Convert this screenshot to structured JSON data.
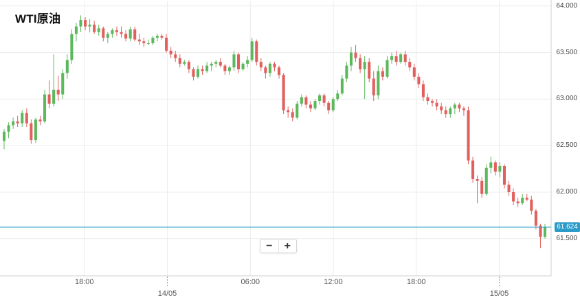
{
  "title": "WTI原油",
  "chart_data": {
    "type": "candlestick",
    "title": "WTI原油",
    "ylim": [
      61.1,
      64.05
    ],
    "y_ticks": [
      "64.000",
      "63.500",
      "63.000",
      "62.500",
      "62.000",
      "61.500"
    ],
    "x_ticks": [
      {
        "label": "18:00",
        "hour": 18
      },
      {
        "label": "14/05",
        "hour": 24
      },
      {
        "label": "06:00",
        "hour": 30
      },
      {
        "label": "12:00",
        "hour": 36
      },
      {
        "label": "18:00",
        "hour": 42
      },
      {
        "label": "15/05",
        "hour": 48
      }
    ],
    "x_range_hours": [
      11.9,
      51.75
    ],
    "day_separators_hours": [
      24,
      48
    ],
    "current_price": "61.624",
    "current_price_value": 61.624,
    "up_color": "#5cb85c",
    "down_color": "#e0605e",
    "price_line_color": "#2b9bc7",
    "candles": [
      [
        62.55,
        62.68,
        62.46,
        62.65
      ],
      [
        62.65,
        62.75,
        62.58,
        62.72
      ],
      [
        62.72,
        62.8,
        62.68,
        62.76
      ],
      [
        62.76,
        62.82,
        62.7,
        62.74
      ],
      [
        62.74,
        62.88,
        62.7,
        62.85
      ],
      [
        62.85,
        62.9,
        62.7,
        62.74
      ],
      [
        62.74,
        62.78,
        62.52,
        62.56
      ],
      [
        62.56,
        62.8,
        62.53,
        62.78
      ],
      [
        62.78,
        62.82,
        62.72,
        62.76
      ],
      [
        62.76,
        63.1,
        62.74,
        63.05
      ],
      [
        63.05,
        63.2,
        62.9,
        62.95
      ],
      [
        62.95,
        63.48,
        62.92,
        63.1
      ],
      [
        63.1,
        63.25,
        62.98,
        63.05
      ],
      [
        63.05,
        63.32,
        63.0,
        63.28
      ],
      [
        63.28,
        63.48,
        63.22,
        63.42
      ],
      [
        63.42,
        63.75,
        63.38,
        63.7
      ],
      [
        63.7,
        63.82,
        63.62,
        63.78
      ],
      [
        63.78,
        63.9,
        63.72,
        63.85
      ],
      [
        63.85,
        63.88,
        63.74,
        63.78
      ],
      [
        63.78,
        63.86,
        63.72,
        63.8
      ],
      [
        63.8,
        63.84,
        63.7,
        63.72
      ],
      [
        63.72,
        63.8,
        63.68,
        63.76
      ],
      [
        63.76,
        63.78,
        63.62,
        63.66
      ],
      [
        63.66,
        63.72,
        63.6,
        63.7
      ],
      [
        63.7,
        63.76,
        63.66,
        63.74
      ],
      [
        63.74,
        63.78,
        63.68,
        63.72
      ],
      [
        63.72,
        63.78,
        63.66,
        63.7
      ],
      [
        63.7,
        63.74,
        63.62,
        63.65
      ],
      [
        63.65,
        63.78,
        63.62,
        63.75
      ],
      [
        63.75,
        63.78,
        63.62,
        63.64
      ],
      [
        63.64,
        63.7,
        63.58,
        63.62
      ],
      [
        63.62,
        63.66,
        63.56,
        63.6
      ],
      [
        63.6,
        63.64,
        63.58,
        63.6
      ],
      [
        63.6,
        63.68,
        63.58,
        63.66
      ],
      [
        63.66,
        63.7,
        63.62,
        63.68
      ],
      [
        63.68,
        63.7,
        63.64,
        63.66
      ],
      [
        63.66,
        63.7,
        63.5,
        63.52
      ],
      [
        63.52,
        63.56,
        63.44,
        63.48
      ],
      [
        63.48,
        63.52,
        63.4,
        63.44
      ],
      [
        63.44,
        63.48,
        63.34,
        63.38
      ],
      [
        63.38,
        63.42,
        63.36,
        63.4
      ],
      [
        63.4,
        63.42,
        63.28,
        63.32
      ],
      [
        63.32,
        63.34,
        63.2,
        63.24
      ],
      [
        63.24,
        63.36,
        63.22,
        63.32
      ],
      [
        63.32,
        63.36,
        63.26,
        63.3
      ],
      [
        63.3,
        63.4,
        63.28,
        63.36
      ],
      [
        63.36,
        63.4,
        63.3,
        63.38
      ],
      [
        63.38,
        63.42,
        63.34,
        63.4
      ],
      [
        63.4,
        63.44,
        63.34,
        63.36
      ],
      [
        63.36,
        63.38,
        63.26,
        63.3
      ],
      [
        63.3,
        63.36,
        63.26,
        63.34
      ],
      [
        63.34,
        63.52,
        63.3,
        63.48
      ],
      [
        63.48,
        63.5,
        63.28,
        63.32
      ],
      [
        63.32,
        63.4,
        63.3,
        63.38
      ],
      [
        63.38,
        63.46,
        63.34,
        63.42
      ],
      [
        63.42,
        63.66,
        63.4,
        63.62
      ],
      [
        63.62,
        63.64,
        63.36,
        63.4
      ],
      [
        63.4,
        63.44,
        63.3,
        63.34
      ],
      [
        63.34,
        63.36,
        63.22,
        63.28
      ],
      [
        63.28,
        63.4,
        63.24,
        63.38
      ],
      [
        63.38,
        63.4,
        63.3,
        63.34
      ],
      [
        63.34,
        63.36,
        63.22,
        63.26
      ],
      [
        63.26,
        63.28,
        62.84,
        62.88
      ],
      [
        62.88,
        62.92,
        62.8,
        62.86
      ],
      [
        62.86,
        62.9,
        62.76,
        62.8
      ],
      [
        62.8,
        62.98,
        62.78,
        62.95
      ],
      [
        62.95,
        63.05,
        62.92,
        63.02
      ],
      [
        63.02,
        63.04,
        62.9,
        62.94
      ],
      [
        62.94,
        62.98,
        62.86,
        62.9
      ],
      [
        62.9,
        63.0,
        62.88,
        62.98
      ],
      [
        62.98,
        63.06,
        62.94,
        63.04
      ],
      [
        63.04,
        63.06,
        62.92,
        62.96
      ],
      [
        62.96,
        62.98,
        62.84,
        62.88
      ],
      [
        62.88,
        63.02,
        62.86,
        63.0
      ],
      [
        63.0,
        63.1,
        62.98,
        63.06
      ],
      [
        63.06,
        63.26,
        63.04,
        63.22
      ],
      [
        63.22,
        63.4,
        63.18,
        63.36
      ],
      [
        63.36,
        63.56,
        63.3,
        63.5
      ],
      [
        63.5,
        63.58,
        63.4,
        63.44
      ],
      [
        63.44,
        63.48,
        63.28,
        63.32
      ],
      [
        63.32,
        63.46,
        63.0,
        63.4
      ],
      [
        63.4,
        63.44,
        63.18,
        63.22
      ],
      [
        63.22,
        63.3,
        62.98,
        63.04
      ],
      [
        63.04,
        63.36,
        63.0,
        63.3
      ],
      [
        63.3,
        63.34,
        63.2,
        63.24
      ],
      [
        63.24,
        63.46,
        63.22,
        63.42
      ],
      [
        63.42,
        63.5,
        63.38,
        63.46
      ],
      [
        63.46,
        63.52,
        63.36,
        63.4
      ],
      [
        63.4,
        63.5,
        63.38,
        63.48
      ],
      [
        63.48,
        63.52,
        63.36,
        63.4
      ],
      [
        63.4,
        63.44,
        63.3,
        63.34
      ],
      [
        63.34,
        63.38,
        63.2,
        63.24
      ],
      [
        63.24,
        63.28,
        63.12,
        63.16
      ],
      [
        63.16,
        63.2,
        62.98,
        63.02
      ],
      [
        63.02,
        63.06,
        62.94,
        62.98
      ],
      [
        62.98,
        63.0,
        62.92,
        62.96
      ],
      [
        62.96,
        63.0,
        62.88,
        62.92
      ],
      [
        62.92,
        62.96,
        62.84,
        62.88
      ],
      [
        62.88,
        62.92,
        62.8,
        62.84
      ],
      [
        62.84,
        62.92,
        62.8,
        62.9
      ],
      [
        62.9,
        62.96,
        62.84,
        62.94
      ],
      [
        62.94,
        62.96,
        62.86,
        62.9
      ],
      [
        62.9,
        62.92,
        62.82,
        62.88
      ],
      [
        62.88,
        62.92,
        62.3,
        62.34
      ],
      [
        62.34,
        62.38,
        62.1,
        62.14
      ],
      [
        62.14,
        62.18,
        61.88,
        62.12
      ],
      [
        62.12,
        62.16,
        61.94,
        61.98
      ],
      [
        61.98,
        62.3,
        61.96,
        62.26
      ],
      [
        62.26,
        62.38,
        62.2,
        62.32
      ],
      [
        62.32,
        62.34,
        62.18,
        62.22
      ],
      [
        62.22,
        62.32,
        62.16,
        62.28
      ],
      [
        62.28,
        62.3,
        62.04,
        62.08
      ],
      [
        62.08,
        62.12,
        61.96,
        62.0
      ],
      [
        62.0,
        62.04,
        61.86,
        61.9
      ],
      [
        61.9,
        61.94,
        61.84,
        61.88
      ],
      [
        61.88,
        61.98,
        61.86,
        61.94
      ],
      [
        61.94,
        61.98,
        61.9,
        61.92
      ],
      [
        61.92,
        61.96,
        61.76,
        61.8
      ],
      [
        61.8,
        61.82,
        61.6,
        61.64
      ],
      [
        61.64,
        61.66,
        61.4,
        61.52
      ],
      [
        61.52,
        61.66,
        61.5,
        61.62
      ]
    ]
  },
  "zoom": {
    "minus_label": "−",
    "plus_label": "+"
  }
}
